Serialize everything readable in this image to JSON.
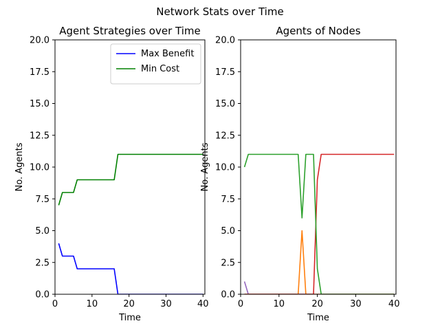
{
  "figure": {
    "title": "Network Stats over Time"
  },
  "chart_data": [
    {
      "type": "line",
      "title": "Agent Strategies over Time",
      "xlabel": "Time",
      "ylabel": "No. Agents",
      "xlim": [
        0,
        40.5
      ],
      "ylim": [
        0,
        20
      ],
      "xticks": [
        "0",
        "10",
        "20",
        "30",
        "40"
      ],
      "yticks": [
        "0.0",
        "2.5",
        "5.0",
        "7.5",
        "10.0",
        "12.5",
        "15.0",
        "17.5",
        "20.0"
      ],
      "grid": false,
      "legend": "top-right",
      "x": [
        1,
        2,
        3,
        4,
        5,
        6,
        7,
        8,
        9,
        10,
        11,
        12,
        13,
        14,
        15,
        16,
        17,
        18,
        19,
        20,
        21,
        22,
        23,
        24,
        25,
        26,
        27,
        28,
        29,
        30,
        31,
        32,
        33,
        34,
        35,
        36,
        37,
        38,
        39,
        40
      ],
      "series": [
        {
          "name": "Max Benefit",
          "color": "#0000ff",
          "values": [
            4,
            3,
            3,
            3,
            3,
            2,
            2,
            2,
            2,
            2,
            2,
            2,
            2,
            2,
            2,
            2,
            0,
            0,
            0,
            0,
            0,
            0,
            0,
            0,
            0,
            0,
            0,
            0,
            0,
            0,
            0,
            0,
            0,
            0,
            0,
            0,
            0,
            0,
            0,
            0
          ]
        },
        {
          "name": "Min Cost",
          "color": "#008000",
          "values": [
            7,
            8,
            8,
            8,
            8,
            9,
            9,
            9,
            9,
            9,
            9,
            9,
            9,
            9,
            9,
            9,
            11,
            11,
            11,
            11,
            11,
            11,
            11,
            11,
            11,
            11,
            11,
            11,
            11,
            11,
            11,
            11,
            11,
            11,
            11,
            11,
            11,
            11,
            11,
            11
          ]
        }
      ]
    },
    {
      "type": "line",
      "title": "Agents of Nodes",
      "xlabel": "Time",
      "ylabel": "No. Agents",
      "xlim": [
        0,
        40.5
      ],
      "ylim": [
        0,
        20
      ],
      "xticks": [
        "0",
        "10",
        "20",
        "30",
        "40"
      ],
      "yticks": [
        "0.0",
        "2.5",
        "5.0",
        "7.5",
        "10.0",
        "12.5",
        "15.0",
        "17.5",
        "20.0"
      ],
      "grid": false,
      "x": [
        1,
        2,
        3,
        4,
        5,
        6,
        7,
        8,
        9,
        10,
        11,
        12,
        13,
        14,
        15,
        16,
        17,
        18,
        19,
        20,
        21,
        22,
        23,
        24,
        25,
        26,
        27,
        28,
        29,
        30,
        31,
        32,
        33,
        34,
        35,
        36,
        37,
        38,
        39,
        40
      ],
      "series": [
        {
          "color": "#9467bd",
          "values": [
            1,
            0,
            0,
            0,
            0,
            0,
            0,
            0,
            0,
            0,
            0,
            0,
            0,
            0,
            0,
            0,
            0,
            0,
            0,
            0,
            0,
            0,
            0,
            0,
            0,
            0,
            0,
            0,
            0,
            0,
            0,
            0,
            0,
            0,
            0,
            0,
            0,
            0,
            0,
            0
          ]
        },
        {
          "color": "#ff7f0e",
          "values": [
            0,
            0,
            0,
            0,
            0,
            0,
            0,
            0,
            0,
            0,
            0,
            0,
            0,
            0,
            0,
            5,
            0,
            0,
            0,
            0,
            0,
            0,
            0,
            0,
            0,
            0,
            0,
            0,
            0,
            0,
            0,
            0,
            0,
            0,
            0,
            0,
            0,
            0,
            0,
            0
          ]
        },
        {
          "color": "#d62728",
          "values": [
            0,
            0,
            0,
            0,
            0,
            0,
            0,
            0,
            0,
            0,
            0,
            0,
            0,
            0,
            0,
            0,
            0,
            0,
            0,
            9,
            11,
            11,
            11,
            11,
            11,
            11,
            11,
            11,
            11,
            11,
            11,
            11,
            11,
            11,
            11,
            11,
            11,
            11,
            11,
            11
          ]
        },
        {
          "color": "#2ca02c",
          "values": [
            10,
            11,
            11,
            11,
            11,
            11,
            11,
            11,
            11,
            11,
            11,
            11,
            11,
            11,
            11,
            6,
            11,
            11,
            11,
            2,
            0,
            0,
            0,
            0,
            0,
            0,
            0,
            0,
            0,
            0,
            0,
            0,
            0,
            0,
            0,
            0,
            0,
            0,
            0,
            0
          ]
        }
      ]
    }
  ]
}
